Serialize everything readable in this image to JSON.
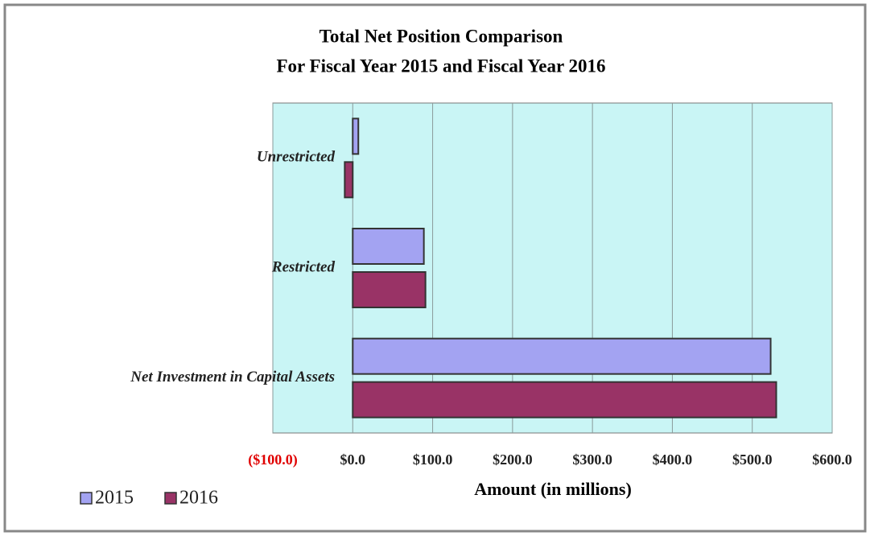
{
  "chart_data": {
    "type": "hbar",
    "title": [
      "Total Net Position Comparison",
      "For Fiscal Year 2015 and Fiscal Year 2016"
    ],
    "x_label": "Amount (in millions)",
    "categories": [
      "Unrestricted",
      "Restricted",
      "Net Investment in Capital Assets"
    ],
    "series": [
      {
        "name": "2015",
        "color": "#a3a3f2",
        "values": [
          7,
          89,
          523
        ]
      },
      {
        "name": "2016",
        "color": "#993366",
        "values": [
          -10,
          91,
          530
        ]
      }
    ],
    "xlim": [
      -100,
      600
    ],
    "xticks": [
      {
        "value": -100,
        "label": "($100.0)"
      },
      {
        "value": 0,
        "label": "$0.0"
      },
      {
        "value": 100,
        "label": "$100.0"
      },
      {
        "value": 200,
        "label": "$200.0"
      },
      {
        "value": 300,
        "label": "$300.0"
      },
      {
        "value": 400,
        "label": "$400.0"
      },
      {
        "value": 500,
        "label": "$500.0"
      },
      {
        "value": 600,
        "label": "$600.0"
      }
    ],
    "grid": true,
    "legend": "bottom-left"
  }
}
